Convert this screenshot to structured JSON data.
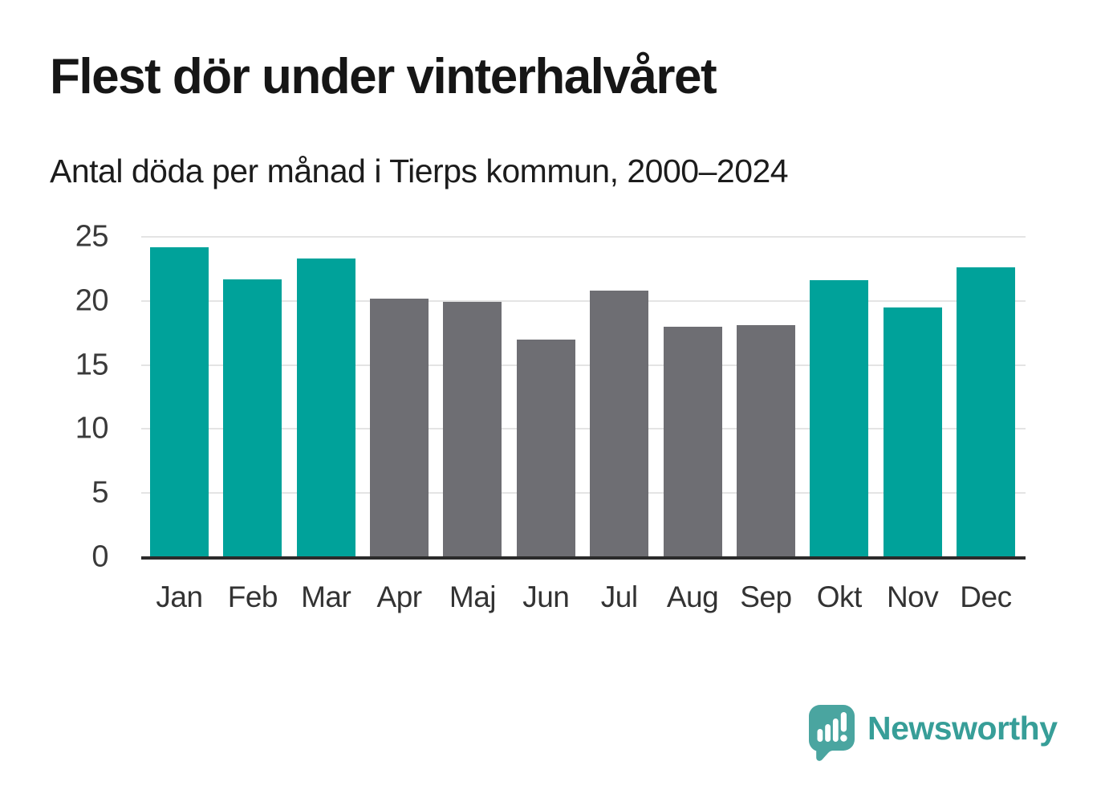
{
  "header": {
    "title": "Flest dör under vinterhalvåret",
    "subtitle": "Antal döda per månad i Tierps kommun, 2000–2024"
  },
  "chart_data": {
    "type": "bar",
    "title": "Flest dör under vinterhalvåret",
    "subtitle": "Antal döda per månad i Tierps kommun, 2000–2024",
    "categories": [
      "Jan",
      "Feb",
      "Mar",
      "Apr",
      "Maj",
      "Jun",
      "Jul",
      "Aug",
      "Sep",
      "Okt",
      "Nov",
      "Dec"
    ],
    "values": [
      24.2,
      21.7,
      23.3,
      20.2,
      19.9,
      17.0,
      20.8,
      18.0,
      18.1,
      21.6,
      19.5,
      22.6
    ],
    "highlighted": [
      true,
      true,
      true,
      false,
      false,
      false,
      false,
      false,
      false,
      true,
      true,
      true
    ],
    "xlabel": "",
    "ylabel": "",
    "ylim": [
      0,
      25
    ],
    "yticks": [
      0,
      5,
      10,
      15,
      20,
      25
    ],
    "grid": true,
    "legend_position": "none",
    "colors": {
      "highlight": "#00a29a",
      "muted": "#6e6e73",
      "gridline": "#e4e4e4",
      "axis": "#2b2b2b"
    }
  },
  "footer": {
    "brand": "Newsworthy",
    "logo_icon": "newsworthy-speech-bubble-bar-chart-icon",
    "logo_icon_color": "#4aa5a0",
    "logo_text_color": "#379e98"
  }
}
